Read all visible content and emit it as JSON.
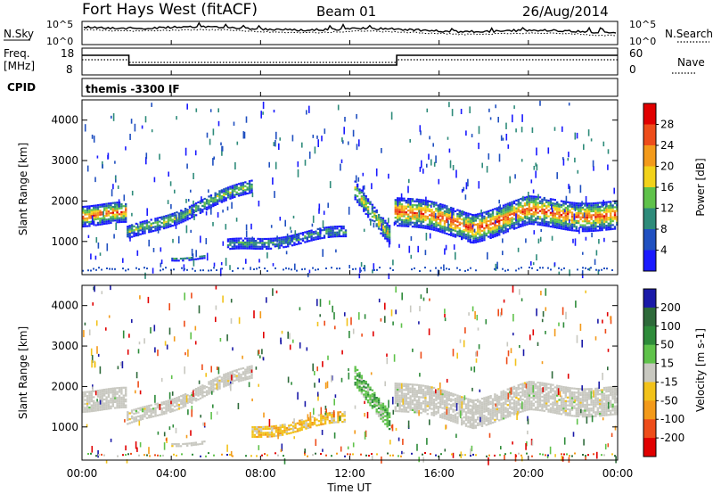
{
  "header": {
    "station": "Fort Hays West (fitACF)",
    "beam": "Beam 01",
    "date": "26/Aug/2014"
  },
  "strip_noise": {
    "left_label": "N.Sky",
    "right_label": "N.Search",
    "left_ticks": [
      "10^5",
      "10^0"
    ],
    "right_ticks": [
      "10^5",
      "10^0"
    ]
  },
  "strip_freq": {
    "left_label_line1": "Freq.",
    "left_label_line2": "[MHz]",
    "right_label": "Nave",
    "left_ticks": [
      "18",
      "8"
    ],
    "right_ticks": [
      "60",
      "0"
    ],
    "freq_steps": [
      {
        "from_hour": 0.0,
        "to_hour": 2.1,
        "level": "high"
      },
      {
        "from_hour": 2.1,
        "to_hour": 14.1,
        "level": "low"
      },
      {
        "from_hour": 14.1,
        "to_hour": 24.0,
        "level": "high"
      }
    ]
  },
  "strip_cpid": {
    "label": "CPID",
    "mode_text": "themis -3300 IF"
  },
  "chart_data": [
    {
      "type": "heatmap",
      "name": "power",
      "ylabel": "Slant Range [km]",
      "y_ticks": [
        "1000",
        "2000",
        "3000",
        "4000"
      ],
      "ylim": [
        180,
        4500
      ],
      "x_ticks": [
        "00:00",
        "04:00",
        "08:00",
        "12:00",
        "16:00",
        "20:00",
        "00:00"
      ],
      "xlim_hours": [
        0,
        24
      ],
      "colorbar": {
        "label": "Power [dB]",
        "ticks": [
          "4",
          "8",
          "12",
          "16",
          "20",
          "24",
          "28"
        ],
        "range": [
          0,
          30
        ],
        "colors": [
          "#1a1aff",
          "#2050c0",
          "#2e8b7a",
          "#5fc24a",
          "#f2d21a",
          "#f39a1a",
          "#ee4d1a",
          "#e10000"
        ]
      },
      "bands": [
        {
          "from_hour": 0.0,
          "to_hour": 2.0,
          "center_km": [
            1700,
            1700
          ],
          "width_km": 500,
          "strength": 0.85
        },
        {
          "from_hour": 2.0,
          "to_hour": 7.6,
          "center_km": [
            1200,
            2400
          ],
          "width_km": 320,
          "strength": 0.5
        },
        {
          "from_hour": 4.0,
          "to_hour": 5.5,
          "center_km": [
            650,
            650
          ],
          "width_km": 80,
          "strength": 0.4
        },
        {
          "from_hour": 6.5,
          "to_hour": 11.8,
          "center_km": [
            900,
            1250
          ],
          "width_km": 250,
          "strength": 0.35
        },
        {
          "from_hour": 12.2,
          "to_hour": 13.8,
          "center_km": [
            2300,
            1200
          ],
          "width_km": 450,
          "strength": 0.6
        },
        {
          "from_hour": 14.0,
          "to_hour": 17.5,
          "center_km": [
            1800,
            1400
          ],
          "width_km": 700,
          "strength": 0.85
        },
        {
          "from_hour": 17.5,
          "to_hour": 20.0,
          "center_km": [
            1400,
            1750
          ],
          "width_km": 700,
          "strength": 0.85
        },
        {
          "from_hour": 20.0,
          "to_hour": 24.0,
          "center_km": [
            1750,
            1650
          ],
          "width_km": 700,
          "strength": 0.85
        }
      ]
    },
    {
      "type": "heatmap",
      "name": "velocity",
      "ylabel": "Slant Range [km]",
      "y_ticks": [
        "1000",
        "2000",
        "3000",
        "4000"
      ],
      "ylim": [
        180,
        4500
      ],
      "x_ticks": [
        "00:00",
        "04:00",
        "08:00",
        "12:00",
        "16:00",
        "20:00",
        "00:00"
      ],
      "xlim_hours": [
        0,
        24
      ],
      "xlabel": "Time UT",
      "colorbar": {
        "label": "Velocity [m s-1]",
        "ticks": [
          "200",
          "100",
          "50",
          "15",
          "-15",
          "-50",
          "-100",
          "-200"
        ],
        "range": [
          -250,
          250
        ],
        "colors": [
          "#1a1aa8",
          "#2e6a3a",
          "#2e8b3a",
          "#5fc24a",
          "#c8c8c0",
          "#f2c21a",
          "#f39a1a",
          "#ee4d1a",
          "#e10000"
        ]
      },
      "bands": [
        {
          "from_hour": 0.0,
          "to_hour": 2.0,
          "center_km": [
            1700,
            1700
          ],
          "width_km": 500,
          "kind": "ground"
        },
        {
          "from_hour": 2.0,
          "to_hour": 7.6,
          "center_km": [
            1200,
            2400
          ],
          "width_km": 320,
          "kind": "ground"
        },
        {
          "from_hour": 4.0,
          "to_hour": 5.5,
          "center_km": [
            650,
            650
          ],
          "width_km": 80,
          "kind": "ground"
        },
        {
          "from_hour": 7.6,
          "to_hour": 11.8,
          "center_km": [
            900,
            1250
          ],
          "width_km": 250,
          "kind": "negative"
        },
        {
          "from_hour": 12.2,
          "to_hour": 13.8,
          "center_km": [
            2300,
            1200
          ],
          "width_km": 450,
          "kind": "positive"
        },
        {
          "from_hour": 14.0,
          "to_hour": 17.5,
          "center_km": [
            1800,
            1400
          ],
          "width_km": 700,
          "kind": "ground"
        },
        {
          "from_hour": 17.5,
          "to_hour": 20.0,
          "center_km": [
            1400,
            1750
          ],
          "width_km": 700,
          "kind": "ground"
        },
        {
          "from_hour": 20.0,
          "to_hour": 24.0,
          "center_km": [
            1750,
            1650
          ],
          "width_km": 700,
          "kind": "ground"
        }
      ]
    }
  ]
}
